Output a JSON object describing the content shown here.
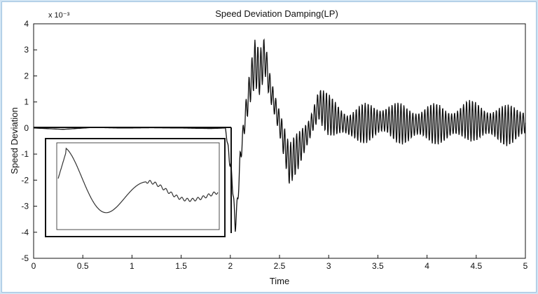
{
  "chart_data": {
    "type": "line",
    "title": "Speed Deviation Damping(LP)",
    "xlabel": "Time",
    "ylabel": "Speed Deviation",
    "y_exponent": "x 10⁻³",
    "xlim": [
      0,
      5
    ],
    "ylim": [
      -5,
      4
    ],
    "xticks": [
      0,
      0.5,
      1,
      1.5,
      2,
      2.5,
      3,
      3.5,
      4,
      4.5,
      5
    ],
    "xtick_labels": [
      "0",
      "0.5",
      "1",
      "1.5",
      "2",
      "2.5",
      "3",
      "3.5",
      "4",
      "4.5",
      "5"
    ],
    "yticks": [
      -5,
      -4,
      -3,
      -2,
      -1,
      0,
      1,
      2,
      3,
      4
    ],
    "ytick_labels": [
      "-5",
      "-4",
      "-3",
      "-2",
      "-1",
      "0",
      "1",
      "2",
      "3",
      "4"
    ],
    "grid": false,
    "line_color": "#111111",
    "series": [
      {
        "x": [
          0,
          0.3,
          0.6,
          0.9,
          1.2,
          1.5,
          1.8,
          1.95,
          2.02,
          2.05,
          2.08,
          2.1,
          2.15,
          2.2,
          2.25,
          2.3,
          2.35,
          2.4,
          2.5,
          2.6,
          2.7,
          2.8,
          2.9,
          3.0,
          3.2,
          3.4,
          3.6,
          3.8,
          4.0,
          4.2,
          4.4,
          4.6,
          4.8,
          5.0
        ],
        "y": [
          0,
          -0.05,
          0.02,
          0.0,
          0.01,
          0.0,
          -0.02,
          0.0,
          -2.0,
          -3.8,
          -2.5,
          -1.2,
          0.4,
          1.6,
          2.5,
          2.1,
          2.8,
          1.6,
          0.2,
          -1.4,
          -0.8,
          -0.1,
          0.9,
          0.5,
          0.1,
          0.2,
          0.3,
          0.1,
          0.2,
          0.1,
          0.3,
          0.2,
          0.1,
          0.2
        ],
        "oscillation_amplitude": [
          0,
          0,
          0,
          0,
          0,
          0,
          0,
          0,
          0.4,
          0.4,
          0.5,
          0.6,
          0.7,
          0.8,
          0.9,
          0.9,
          0.9,
          0.9,
          0.8,
          0.8,
          0.8,
          0.8,
          0.8,
          0.8,
          0.7,
          0.8,
          0.8,
          0.8,
          0.8,
          0.8,
          0.8,
          0.8,
          0.8,
          0.8
        ]
      }
    ],
    "inset": {
      "type": "line",
      "description_visible": false,
      "x": [
        0,
        0.1,
        0.2,
        0.3,
        0.4,
        0.5,
        0.6,
        0.7,
        0.8,
        0.9,
        1.0
      ],
      "y": [
        0.2,
        0.9,
        0.2,
        -0.9,
        -0.4,
        0.2,
        -0.3,
        -0.15,
        -0.2,
        -0.2,
        -0.2
      ]
    }
  }
}
